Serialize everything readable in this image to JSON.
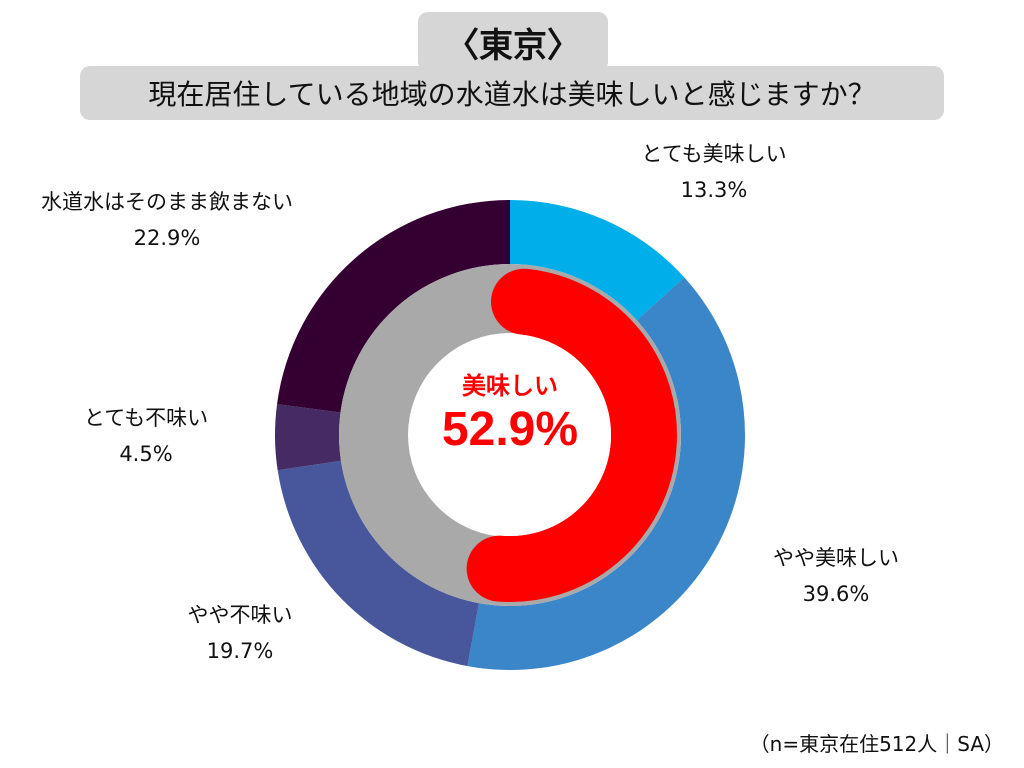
{
  "header": {
    "title": "〈東京〉",
    "subtitle": "現在居住している地域の水道水は美味しいと感じますか？"
  },
  "chart_data": {
    "type": "pie",
    "variant": "double-donut",
    "title": "〈東京〉",
    "subtitle": "現在居住している地域の水道水は美味しいと感じますか？",
    "outer_ring": {
      "start": "top (12 o'clock), clockwise",
      "slices": [
        {
          "label": "とても美味しい",
          "value": 13.3,
          "display": "13.3%",
          "color": "#00aeea"
        },
        {
          "label": "やや美味しい",
          "value": 39.6,
          "display": "39.6%",
          "color": "#3b86c9"
        },
        {
          "label": "やや不味い",
          "value": 19.7,
          "display": "19.7%",
          "color": "#48579c"
        },
        {
          "label": "とても不味い",
          "value": 4.5,
          "display": "4.5%",
          "color": "#462a63"
        },
        {
          "label": "水道水はそのまま飲まない",
          "value": 22.9,
          "display": "22.9%",
          "color": "#340032"
        }
      ]
    },
    "inner_ring": {
      "highlight": {
        "label": "美味しい",
        "value": 52.9,
        "display": "52.9%",
        "color": "#ff0000"
      },
      "rest_color": "#a9a9a9"
    },
    "footnote": "（n=東京在住512人｜SA）"
  }
}
